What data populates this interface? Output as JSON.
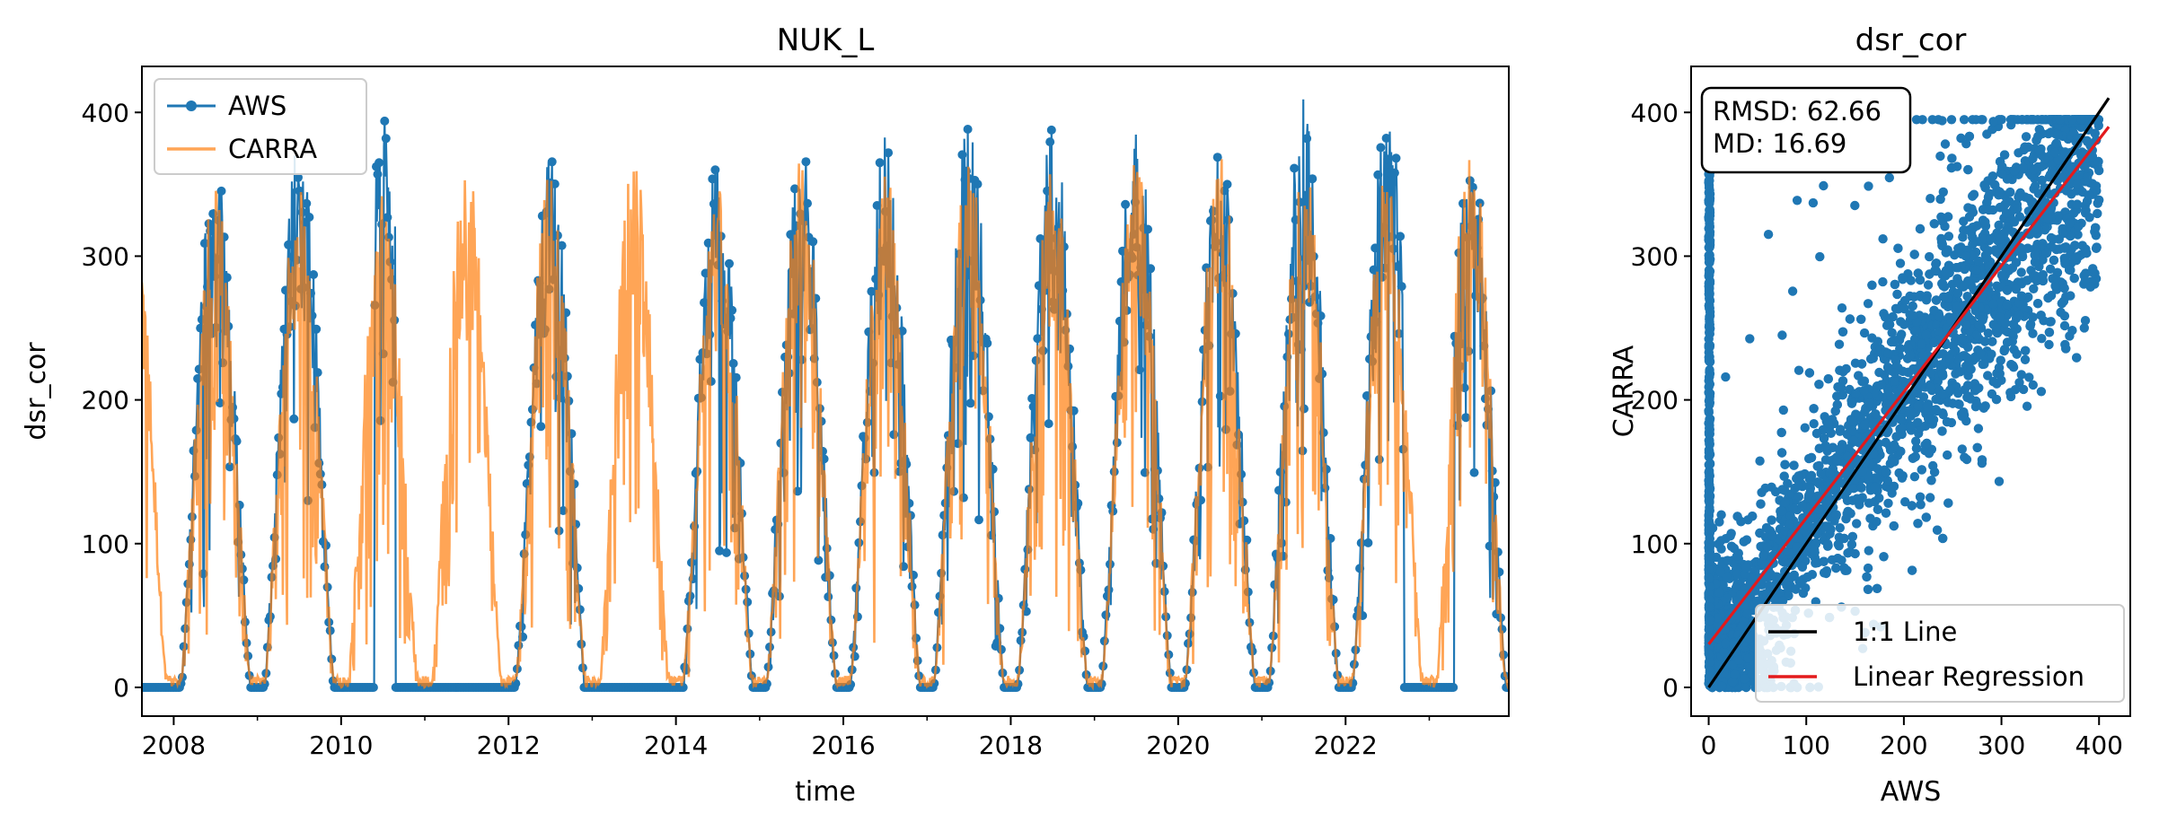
{
  "colors": {
    "aws": "#1f77b4",
    "carra": "#ff7f0e",
    "one_to_one": "#000000",
    "regression": "#e31a1c"
  },
  "chart_data": [
    {
      "type": "line",
      "title": "NUK_L",
      "xlabel": "time",
      "ylabel": "dsr_cor",
      "xlim": [
        2007.62,
        2023.95
      ],
      "ylim": [
        -20,
        432
      ],
      "x_ticks": [
        "2008",
        "2010",
        "2012",
        "2014",
        "2016",
        "2018",
        "2020",
        "2022"
      ],
      "y_ticks": [
        "0",
        "100",
        "200",
        "300",
        "400"
      ],
      "legend": {
        "placement": "top-left",
        "entries": [
          "AWS",
          "CARRA"
        ]
      },
      "series": [
        {
          "name": "AWS",
          "style": "line+markers",
          "color": "#1f77b4",
          "annual_peak": {
            "x": [
              2008.5,
              2009.5,
              2010.5,
              2012.5,
              2014.5,
              2015.5,
              2016.5,
              2017.45,
              2018.5,
              2019.45,
              2020.5,
              2021.5,
              2022.45,
              2023.5
            ],
            "y": [
              365,
              385,
              397,
              372,
              370,
              378,
              383,
              400,
              395,
              397,
              385,
              411,
              408,
              374
            ]
          },
          "gaps_at_zero": [
            [
              2010.0,
              2010.4
            ],
            [
              2010.65,
              2011.85
            ],
            [
              2012.9,
              2014.1
            ],
            [
              2022.7,
              2023.3
            ]
          ]
        },
        {
          "name": "CARRA",
          "style": "line",
          "color": "#ff7f0e",
          "annual_peak": {
            "x": [
              2008.5,
              2009.5,
              2010.5,
              2011.5,
              2012.5,
              2013.5,
              2014.5,
              2015.5,
              2016.5,
              2017.5,
              2018.5,
              2019.5,
              2020.5,
              2021.5,
              2022.5,
              2023.5
            ],
            "y": [
              352,
              355,
              348,
              372,
              365,
              372,
              362,
              368,
              360,
              370,
              362,
              368,
              370,
              372,
              368,
              386
            ]
          }
        }
      ]
    },
    {
      "type": "scatter",
      "title": "dsr_cor",
      "xlabel": "AWS",
      "ylabel": "CARRA",
      "xlim": [
        -18,
        432
      ],
      "ylim": [
        -20,
        432
      ],
      "x_ticks": [
        "0",
        "100",
        "200",
        "300",
        "400"
      ],
      "y_ticks": [
        "0",
        "100",
        "200",
        "300",
        "400"
      ],
      "stats": [
        "RMSD: 62.66",
        "MD: 16.69"
      ],
      "legend": {
        "placement": "lower-right",
        "entries": [
          "1:1 Line",
          "Linear Regression"
        ]
      },
      "series": [
        {
          "name": "AWS vs CARRA",
          "color": "#1f77b4",
          "cloud": {
            "x_range": [
              0,
              410
            ],
            "relation": "roughly 1:1 with spread",
            "vertical_band_at_x0": [
              0,
              395
            ]
          }
        }
      ],
      "lines": [
        {
          "name": "1:1 Line",
          "from": [
            0,
            0
          ],
          "to": [
            410,
            410
          ]
        },
        {
          "name": "Linear Regression",
          "from": [
            0,
            30
          ],
          "to": [
            410,
            390
          ]
        }
      ]
    }
  ]
}
